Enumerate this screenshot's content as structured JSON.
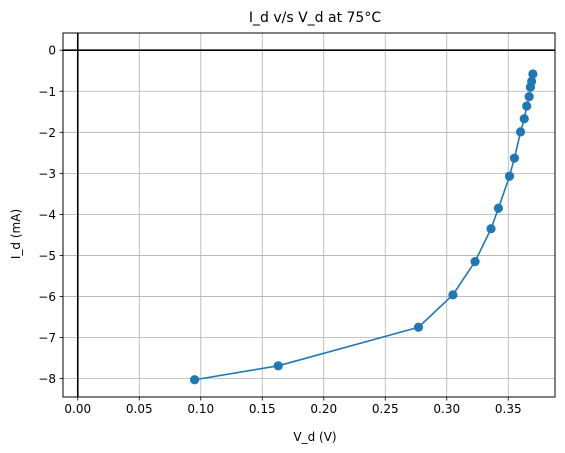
{
  "chart_data": {
    "type": "line",
    "title": "I_d v/s V_d at 75°C",
    "xlabel": "V_d (V)",
    "ylabel": "I_d (mA)",
    "xlim": [
      -0.012,
      0.388
    ],
    "ylim": [
      -8.45,
      0.42
    ],
    "x_ticks": [
      "0.00",
      "0.05",
      "0.10",
      "0.15",
      "0.20",
      "0.25",
      "0.30",
      "0.35"
    ],
    "y_ticks": [
      "0",
      "−1",
      "−2",
      "−3",
      "−4",
      "−5",
      "−6",
      "−7",
      "−8"
    ],
    "grid": true,
    "series_color": "#1f77b4",
    "reference_lines": [
      {
        "orientation": "horizontal",
        "value": 0
      },
      {
        "orientation": "vertical",
        "value": 0
      }
    ],
    "series": [
      {
        "marker": "circle",
        "x": [
          0.095,
          0.163,
          0.277,
          0.305,
          0.323,
          0.336,
          0.342,
          0.351,
          0.355,
          0.36,
          0.363,
          0.365,
          0.367,
          0.368,
          0.369,
          0.37
        ],
        "y": [
          -8.03,
          -7.69,
          -6.75,
          -5.96,
          -5.15,
          -4.35,
          -3.85,
          -3.07,
          -2.63,
          -1.99,
          -1.67,
          -1.36,
          -1.13,
          -0.9,
          -0.76,
          -0.58
        ]
      }
    ]
  }
}
